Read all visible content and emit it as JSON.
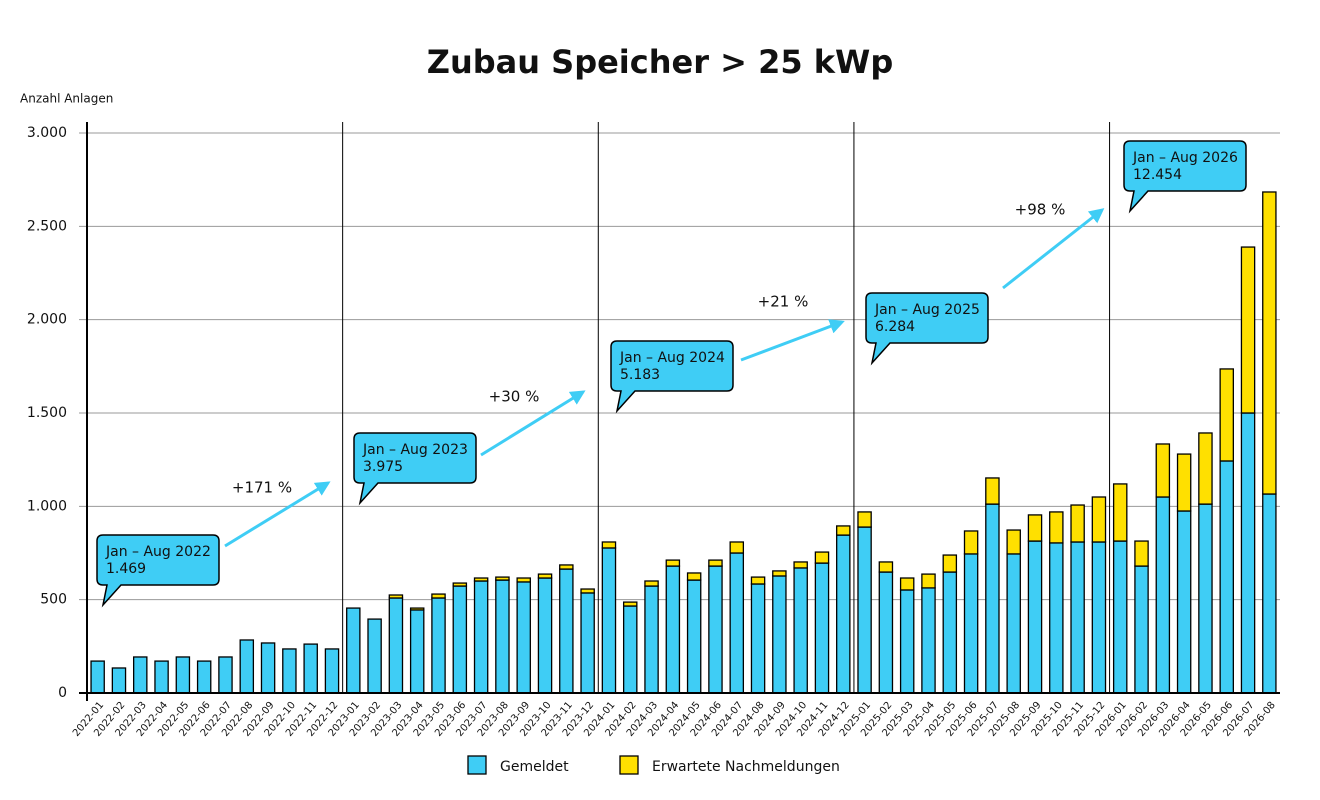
{
  "chart_data": {
    "type": "stacked_bar",
    "title": "Zubau Speicher > 25 kWp",
    "y_label": "Anzahl Anlagen",
    "categories": [
      "2022-01",
      "2022-02",
      "2022-03",
      "2022-04",
      "2022-05",
      "2022-06",
      "2022-07",
      "2022-08",
      "2022-09",
      "2022-10",
      "2022-11",
      "2022-12",
      "2023-01",
      "2023-02",
      "2023-03",
      "2023-04",
      "2023-05",
      "2023-06",
      "2023-07",
      "2023-08",
      "2023-09",
      "2023-10",
      "2023-11",
      "2023-12",
      "2024-01",
      "2024-02",
      "2024-03",
      "2024-04",
      "2024-05",
      "2024-06",
      "2024-07",
      "2024-08",
      "2024-09",
      "2024-10",
      "2024-11",
      "2024-12",
      "2025-01",
      "2025-02",
      "2025-03",
      "2025-04",
      "2025-05",
      "2025-06",
      "2025-07",
      "2025-08",
      "2025-09",
      "2025-10",
      "2025-11",
      "2025-12",
      "2026-01",
      "2026-02",
      "2026-03",
      "2026-04",
      "2026-05",
      "2026-06",
      "2026-07",
      "2026-08"
    ],
    "series": [
      {
        "name": "Gemeldet",
        "color": "#3fcdf5",
        "values": [
          171,
          134,
          193,
          171,
          193,
          171,
          193,
          284,
          268,
          236,
          262,
          236,
          455,
          396,
          509,
          445,
          509,
          573,
          600,
          605,
          595,
          616,
          664,
          536,
          777,
          466,
          573,
          680,
          605,
          680,
          750,
          584,
          627,
          670,
          696,
          846,
          889,
          648,
          552,
          563,
          648,
          745,
          1012,
          745,
          814,
          804,
          809,
          809,
          814,
          680,
          1050,
          975,
          1012,
          1243,
          1500,
          1066
        ]
      },
      {
        "name": "Erwartete Nachmeldungen",
        "color": "#ffe000",
        "values": [
          0,
          0,
          0,
          0,
          0,
          0,
          0,
          0,
          0,
          0,
          0,
          0,
          0,
          0,
          16,
          10,
          21,
          16,
          16,
          16,
          21,
          21,
          22,
          21,
          32,
          21,
          27,
          32,
          38,
          32,
          59,
          37,
          27,
          32,
          59,
          49,
          81,
          54,
          64,
          74,
          91,
          123,
          140,
          128,
          140,
          166,
          198,
          241,
          306,
          134,
          284,
          305,
          381,
          493,
          889,
          1618
        ]
      }
    ],
    "ylim": [
      0,
      3000
    ],
    "yticks": [
      0,
      500,
      {
        "value": 1000,
        "label": "1.000"
      },
      {
        "value": 1500,
        "label": "1.500"
      },
      {
        "value": 2000,
        "label": "2.000"
      },
      {
        "value": 2500,
        "label": "2.500"
      },
      {
        "value": 3000,
        "label": "3.000"
      }
    ],
    "grid": true,
    "annotations": [
      {
        "title": "Jan – Aug 2022",
        "total": "1.469"
      },
      {
        "title": "Jan – Aug 2023",
        "total": "3.975"
      },
      {
        "title": "Jan – Aug 2024",
        "total": "5.183"
      },
      {
        "title": "Jan – Aug 2025",
        "total": "6.284"
      },
      {
        "title": "Jan – Aug 2026",
        "total": "12.454"
      }
    ],
    "growth": [
      "+171 %",
      "+30 %",
      "+21 %",
      "+98 %"
    ],
    "legend": "bottom"
  }
}
